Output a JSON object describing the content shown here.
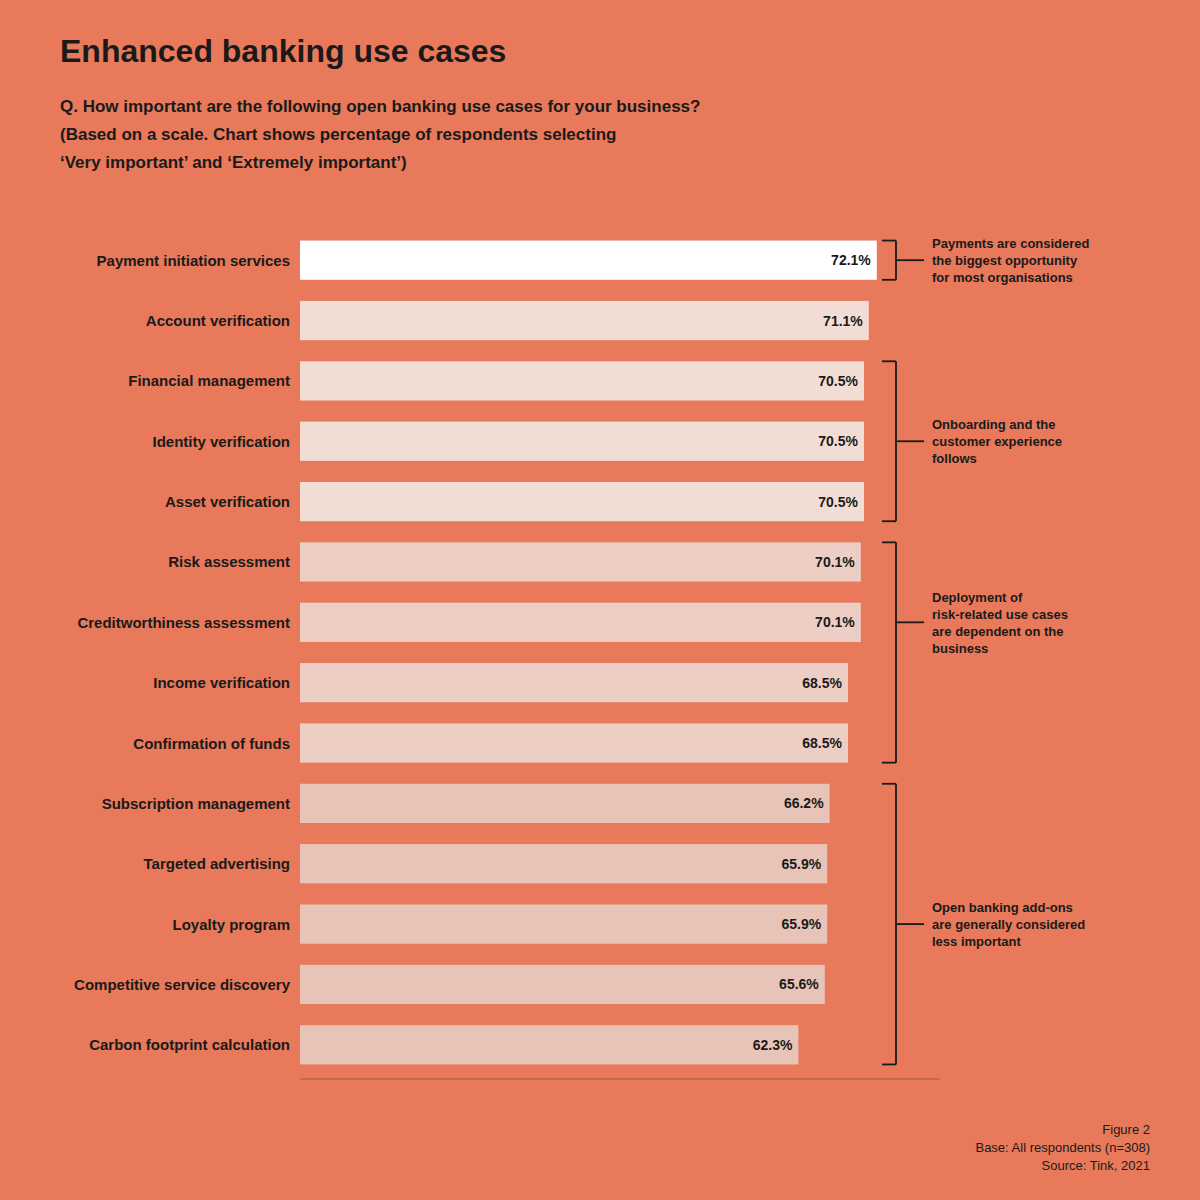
{
  "chart_data": {
    "type": "bar",
    "orientation": "horizontal",
    "title": "Enhanced banking use cases",
    "subtitle": "Q. How important are the following open banking use cases for your business?\n(Based on a scale. Chart shows percentage of respondents selecting\n‘Very important’ and ‘Extremely important’)",
    "footnote": "Figure 2\nBase: All respondents (n=308)\nSource: Tink, 2021",
    "categories": [
      "Payment initiation services",
      "Account verification",
      "Financial management",
      "Identity verification",
      "Asset verification",
      "Risk assessment",
      "Creditworthiness assessment",
      "Income verification",
      "Confirmation of funds",
      "Subscription management",
      "Targeted advertising",
      "Loyalty program",
      "Competitive service discovery",
      "Carbon footprint calculation"
    ],
    "values": [
      72.1,
      71.1,
      70.5,
      70.5,
      70.5,
      70.1,
      70.1,
      68.5,
      68.5,
      66.2,
      65.9,
      65.9,
      65.6,
      62.3
    ],
    "value_labels": [
      "72.1%",
      "71.1%",
      "70.5%",
      "70.5%",
      "70.5%",
      "70.1%",
      "70.1%",
      "68.5%",
      "68.5%",
      "66.2%",
      "65.9%",
      "65.9%",
      "65.6%",
      "62.3%"
    ],
    "colors": [
      "#FFFFFF",
      "#F2DDD5",
      "#F2DDD5",
      "#F2DDD5",
      "#F2DDD5",
      "#EDCEC4",
      "#EDCEC4",
      "#EDCEC4",
      "#EDCEC4",
      "#E8C4B8",
      "#E8C4B8",
      "#E8C4B8",
      "#E8C4B8",
      "#E8C4B8"
    ],
    "xlim": [
      0,
      80
    ],
    "data_labels": true,
    "tick_labels": false,
    "grid": false,
    "annotations": [
      {
        "text": "Payments are considered\nthe biggest opportunity\nfor most organisations",
        "indices": [
          0
        ],
        "mid_index": 0
      },
      {
        "text": "Onboarding and the\ncustomer experience\nfollows",
        "indices": [
          2,
          3,
          4
        ],
        "mid_index": 3
      },
      {
        "text": "Deployment of\nrisk-related use cases\nare dependent on the\nbusiness",
        "indices": [
          5,
          6,
          7,
          8
        ],
        "mid_index": 6
      },
      {
        "text": "Open banking add-ons\nare generally considered\nless important",
        "indices": [
          9,
          10,
          11,
          12,
          13
        ],
        "mid_index": 11
      }
    ]
  }
}
